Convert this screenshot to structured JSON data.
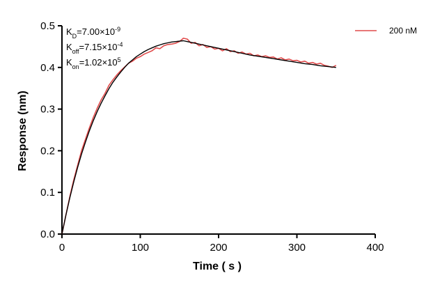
{
  "chart_data": {
    "type": "line",
    "title": "",
    "xlabel": "Time ( s )",
    "ylabel": "Response (nm)",
    "xlim": [
      0,
      400
    ],
    "ylim": [
      0,
      0.5
    ],
    "x_ticks": [
      0,
      100,
      200,
      300,
      400
    ],
    "y_ticks": [
      0.0,
      0.1,
      0.2,
      0.3,
      0.4,
      0.5
    ],
    "x_tick_labels": [
      "0",
      "100",
      "200",
      "300",
      "400"
    ],
    "y_tick_labels": [
      "0.0",
      "0.1",
      "0.2",
      "0.3",
      "0.4",
      "0.5"
    ],
    "grid": false,
    "legend_position": "top-right",
    "annotations": [
      {
        "base": "K",
        "sub": "D",
        "mid": "=7.00×10",
        "sup": "-9"
      },
      {
        "base": "K",
        "sub": "off",
        "mid": "=7.15×10",
        "sup": "-4"
      },
      {
        "base": "K",
        "sub": "on",
        "mid": "=1.02×10",
        "sup": "5"
      }
    ],
    "series": [
      {
        "name": "200 nM",
        "color": "#e04a4a",
        "kind": "measured",
        "x": [
          0,
          5,
          10,
          15,
          20,
          25,
          30,
          35,
          40,
          45,
          50,
          55,
          60,
          65,
          70,
          75,
          80,
          85,
          90,
          95,
          100,
          105,
          110,
          115,
          120,
          125,
          130,
          135,
          140,
          145,
          150,
          155,
          160,
          165,
          170,
          175,
          180,
          185,
          190,
          195,
          200,
          205,
          210,
          215,
          220,
          225,
          230,
          235,
          240,
          245,
          250,
          255,
          260,
          265,
          270,
          275,
          280,
          285,
          290,
          295,
          300,
          305,
          310,
          315,
          320,
          325,
          330,
          335,
          340,
          345,
          350
        ],
        "y": [
          0.0,
          0.045,
          0.09,
          0.13,
          0.165,
          0.2,
          0.228,
          0.255,
          0.28,
          0.302,
          0.322,
          0.338,
          0.357,
          0.37,
          0.382,
          0.392,
          0.401,
          0.41,
          0.415,
          0.422,
          0.426,
          0.432,
          0.436,
          0.44,
          0.447,
          0.445,
          0.452,
          0.455,
          0.456,
          0.458,
          0.462,
          0.47,
          0.468,
          0.458,
          0.46,
          0.452,
          0.455,
          0.448,
          0.45,
          0.444,
          0.446,
          0.44,
          0.445,
          0.438,
          0.44,
          0.434,
          0.437,
          0.432,
          0.434,
          0.428,
          0.43,
          0.426,
          0.428,
          0.424,
          0.425,
          0.42,
          0.423,
          0.418,
          0.42,
          0.416,
          0.417,
          0.413,
          0.415,
          0.41,
          0.412,
          0.408,
          0.41,
          0.405,
          0.403,
          0.4,
          0.405
        ]
      },
      {
        "kind": "fit",
        "color": "#000000",
        "x": [
          0,
          5,
          10,
          15,
          20,
          25,
          30,
          35,
          40,
          45,
          50,
          55,
          60,
          65,
          70,
          75,
          80,
          85,
          90,
          95,
          100,
          105,
          110,
          115,
          120,
          125,
          130,
          135,
          140,
          145,
          150,
          155,
          160,
          170,
          180,
          190,
          200,
          210,
          220,
          230,
          240,
          250,
          260,
          270,
          280,
          290,
          300,
          310,
          320,
          330,
          340,
          350
        ],
        "y": [
          0.0,
          0.045,
          0.087,
          0.125,
          0.16,
          0.192,
          0.221,
          0.248,
          0.272,
          0.294,
          0.314,
          0.332,
          0.349,
          0.364,
          0.377,
          0.389,
          0.4,
          0.41,
          0.418,
          0.426,
          0.432,
          0.438,
          0.443,
          0.447,
          0.451,
          0.454,
          0.457,
          0.459,
          0.461,
          0.462,
          0.463,
          0.464,
          0.462,
          0.458,
          0.454,
          0.45,
          0.446,
          0.442,
          0.438,
          0.434,
          0.43,
          0.427,
          0.424,
          0.421,
          0.418,
          0.415,
          0.412,
          0.409,
          0.407,
          0.404,
          0.402,
          0.4
        ]
      }
    ]
  }
}
